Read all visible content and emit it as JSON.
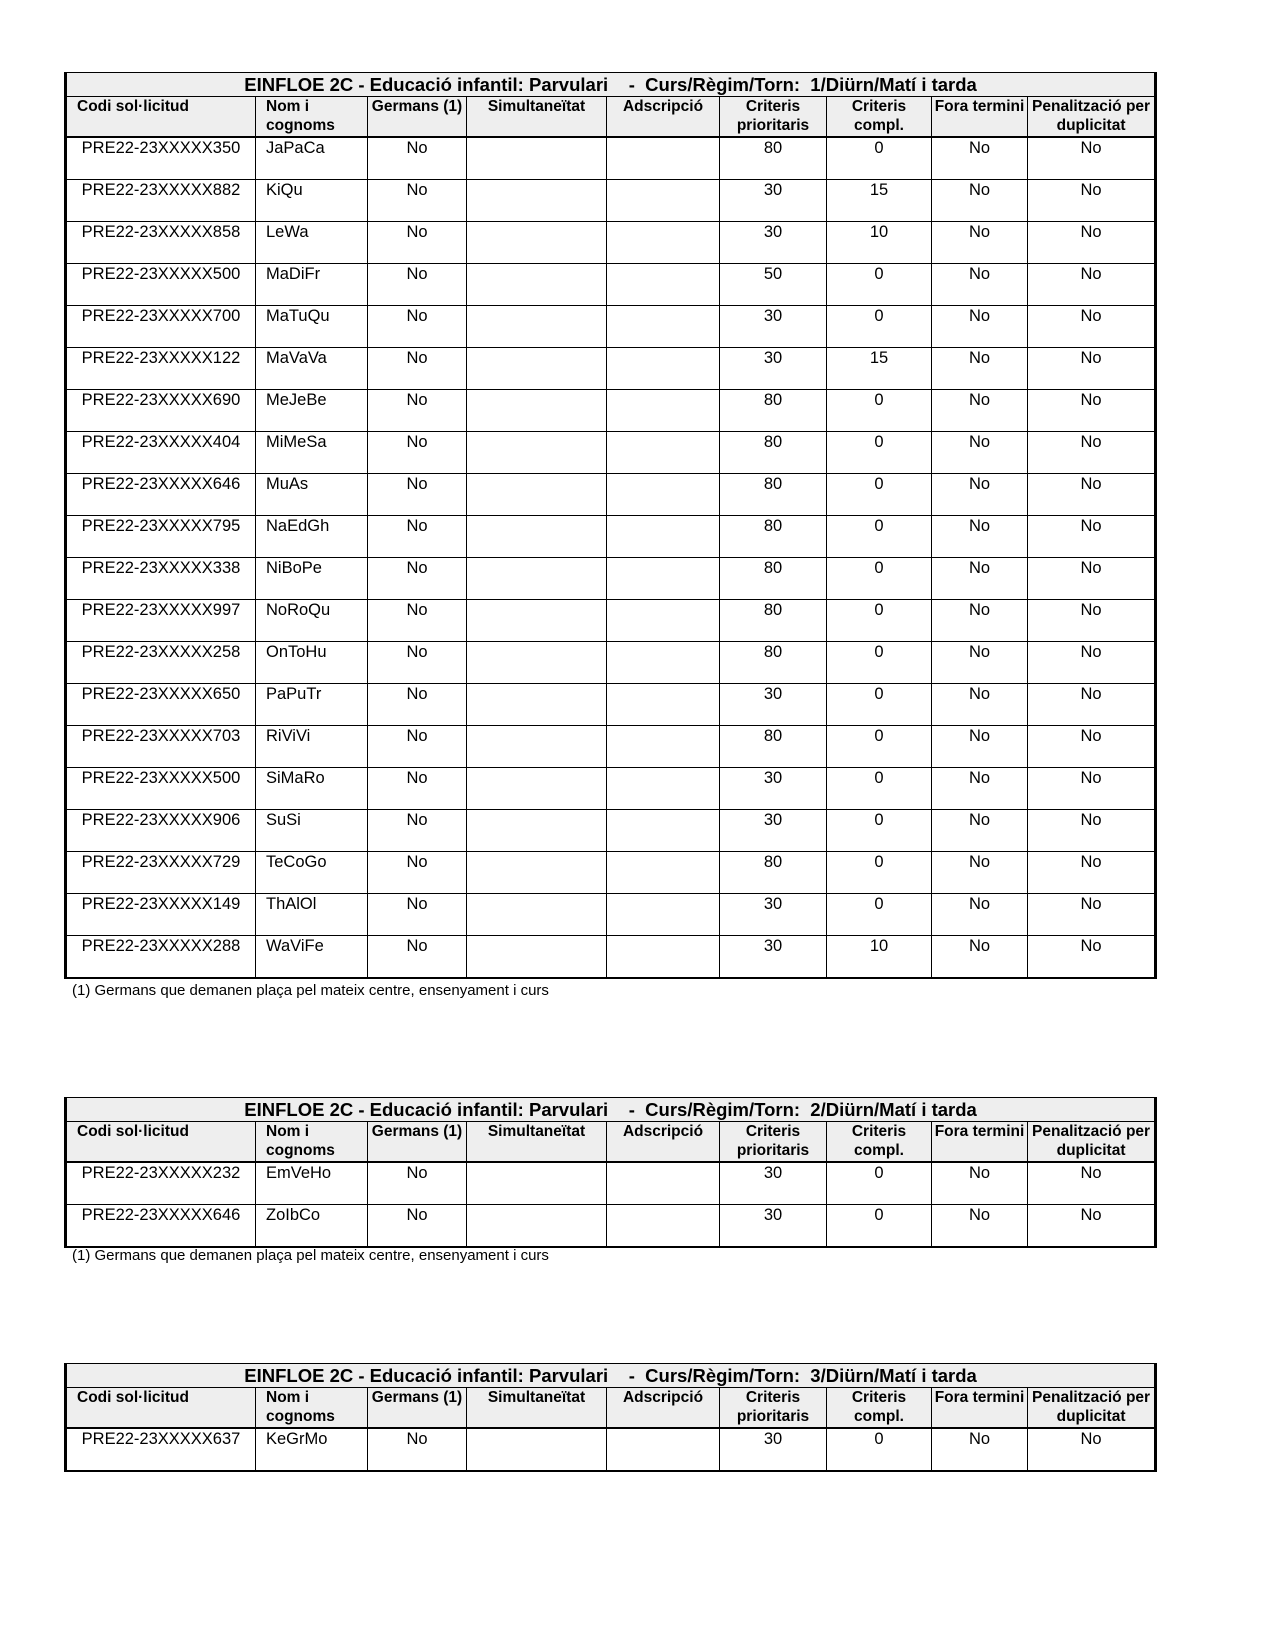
{
  "columns": [
    "Codi sol·licitud",
    "Nom i cognoms",
    "Germans (1)",
    "Simultaneïtat",
    "Adscripció",
    "Criteris prioritaris",
    "Criteris compl.",
    "Fora termini",
    "Penalització per duplicitat"
  ],
  "footnote": "(1) Germans que demanen plaça pel mateix centre, ensenyament i curs",
  "tables": [
    {
      "title": "EINFLOE 2C - Educació infantil: Parvulari    -  Curs/Règim/Torn:  1/Diürn/Matí i tarda",
      "rows": [
        [
          "PRE22-23XXXXX350",
          "JaPaCa",
          "No",
          "",
          "",
          "80",
          "0",
          "No",
          "No"
        ],
        [
          "PRE22-23XXXXX882",
          "KiQu",
          "No",
          "",
          "",
          "30",
          "15",
          "No",
          "No"
        ],
        [
          "PRE22-23XXXXX858",
          "LeWa",
          "No",
          "",
          "",
          "30",
          "10",
          "No",
          "No"
        ],
        [
          "PRE22-23XXXXX500",
          "MaDiFr",
          "No",
          "",
          "",
          "50",
          "0",
          "No",
          "No"
        ],
        [
          "PRE22-23XXXXX700",
          "MaTuQu",
          "No",
          "",
          "",
          "30",
          "0",
          "No",
          "No"
        ],
        [
          "PRE22-23XXXXX122",
          "MaVaVa",
          "No",
          "",
          "",
          "30",
          "15",
          "No",
          "No"
        ],
        [
          "PRE22-23XXXXX690",
          "MeJeBe",
          "No",
          "",
          "",
          "80",
          "0",
          "No",
          "No"
        ],
        [
          "PRE22-23XXXXX404",
          "MiMeSa",
          "No",
          "",
          "",
          "80",
          "0",
          "No",
          "No"
        ],
        [
          "PRE22-23XXXXX646",
          "MuAs",
          "No",
          "",
          "",
          "80",
          "0",
          "No",
          "No"
        ],
        [
          "PRE22-23XXXXX795",
          "NaEdGh",
          "No",
          "",
          "",
          "80",
          "0",
          "No",
          "No"
        ],
        [
          "PRE22-23XXXXX338",
          "NiBoPe",
          "No",
          "",
          "",
          "80",
          "0",
          "No",
          "No"
        ],
        [
          "PRE22-23XXXXX997",
          "NoRoQu",
          "No",
          "",
          "",
          "80",
          "0",
          "No",
          "No"
        ],
        [
          "PRE22-23XXXXX258",
          "OnToHu",
          "No",
          "",
          "",
          "80",
          "0",
          "No",
          "No"
        ],
        [
          "PRE22-23XXXXX650",
          "PaPuTr",
          "No",
          "",
          "",
          "30",
          "0",
          "No",
          "No"
        ],
        [
          "PRE22-23XXXXX703",
          "RiViVi",
          "No",
          "",
          "",
          "80",
          "0",
          "No",
          "No"
        ],
        [
          "PRE22-23XXXXX500",
          "SiMaRo",
          "No",
          "",
          "",
          "30",
          "0",
          "No",
          "No"
        ],
        [
          "PRE22-23XXXXX906",
          "SuSi",
          "No",
          "",
          "",
          "30",
          "0",
          "No",
          "No"
        ],
        [
          "PRE22-23XXXXX729",
          "TeCoGo",
          "No",
          "",
          "",
          "80",
          "0",
          "No",
          "No"
        ],
        [
          "PRE22-23XXXXX149",
          "ThAlOl",
          "No",
          "",
          "",
          "30",
          "0",
          "No",
          "No"
        ],
        [
          "PRE22-23XXXXX288",
          "WaViFe",
          "No",
          "",
          "",
          "30",
          "10",
          "No",
          "No"
        ]
      ]
    },
    {
      "title": "EINFLOE 2C - Educació infantil: Parvulari    -  Curs/Règim/Torn:  2/Diürn/Matí i tarda",
      "rows": [
        [
          "PRE22-23XXXXX232",
          "EmVeHo",
          "No",
          "",
          "",
          "30",
          "0",
          "No",
          "No"
        ],
        [
          "PRE22-23XXXXX646",
          "ZoIbCo",
          "No",
          "",
          "",
          "30",
          "0",
          "No",
          "No"
        ]
      ]
    },
    {
      "title": "EINFLOE 2C - Educació infantil: Parvulari    -  Curs/Règim/Torn:  3/Diürn/Matí i tarda",
      "rows": [
        [
          "PRE22-23XXXXX637",
          "KeGrMo",
          "No",
          "",
          "",
          "30",
          "0",
          "No",
          "No"
        ]
      ]
    }
  ]
}
